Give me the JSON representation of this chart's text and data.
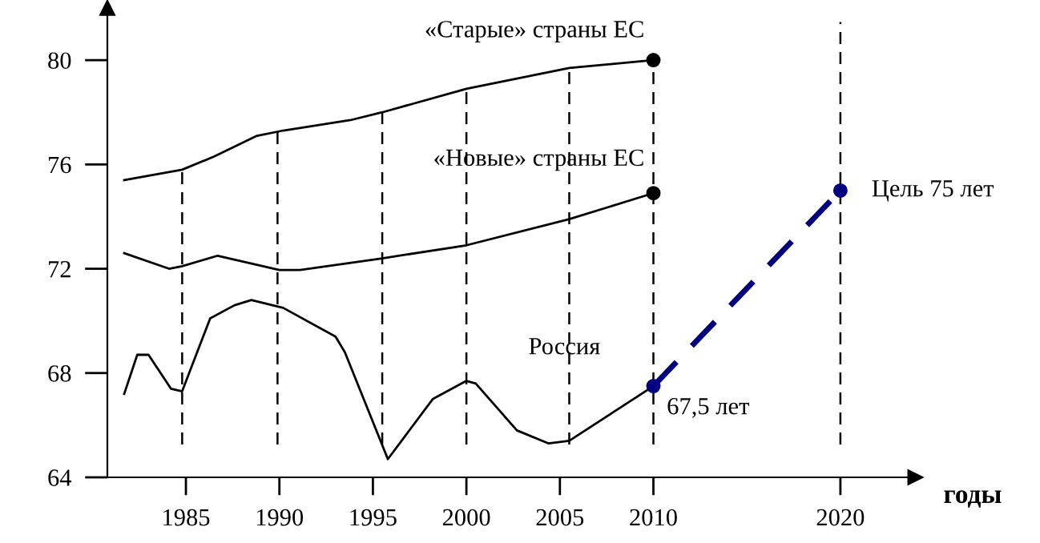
{
  "chart_data": {
    "type": "line",
    "xlabel": "годы",
    "xlim": [
      1980.8,
      2024
    ],
    "ylim": [
      64,
      82
    ],
    "xticks": [
      1985,
      1990,
      1995,
      2000,
      2005,
      2010,
      2020
    ],
    "yticks": [
      64,
      68,
      72,
      76,
      80
    ],
    "grid": false,
    "legend": false,
    "marker": "none",
    "line_style": "solid",
    "series": [
      {
        "name": "«Старые» страны ЕС",
        "color": "#000000",
        "x": [
          1981.7,
          1984.8,
          1986.5,
          1988.8,
          1990.2,
          1993.8,
          1995.5,
          2000,
          2005.5,
          2010
        ],
        "values": [
          75.4,
          75.8,
          76.3,
          77.1,
          77.3,
          77.7,
          78.0,
          78.9,
          79.7,
          80.0
        ]
      },
      {
        "name": "«Новые» страны ЕС",
        "color": "#000000",
        "x": [
          1981.7,
          1984.1,
          1984.8,
          1986.7,
          1990,
          1991.1,
          1995.5,
          2000,
          2005.5,
          2010
        ],
        "values": [
          72.6,
          72.0,
          72.1,
          72.5,
          71.95,
          71.95,
          72.4,
          72.9,
          73.9,
          74.9
        ]
      },
      {
        "name": "Россия",
        "color": "#000000",
        "x": [
          1981.7,
          1982.4,
          1983,
          1984.2,
          1984.8,
          1986.3,
          1987.6,
          1988.5,
          1990.2,
          1993,
          1993.5,
          1995.8,
          1998.2,
          2000,
          2000.5,
          2002.7,
          2004.4,
          2005.5,
          2010
        ],
        "values": [
          67.2,
          68.7,
          68.7,
          67.4,
          67.3,
          70.1,
          70.6,
          70.8,
          70.5,
          69.4,
          68.8,
          64.7,
          67.0,
          67.7,
          67.6,
          65.8,
          65.3,
          65.4,
          67.5
        ]
      },
      {
        "color": "#000080",
        "line_style": "dashed",
        "x": [
          2010,
          2020
        ],
        "values": [
          67.5,
          75
        ]
      },
      {
        "type": "scatter",
        "color": "#000000",
        "marker": "circle",
        "x": [
          2010,
          2010
        ],
        "values": [
          80.0,
          74.9
        ]
      },
      {
        "type": "scatter",
        "color": "#000080",
        "marker": "circle",
        "x": [
          2010,
          2020
        ],
        "values": [
          67.5,
          75
        ]
      }
    ],
    "ref_lines": [
      {
        "axis": "x",
        "value": 1984.8,
        "color": "#000000",
        "line_style": "dashed"
      },
      {
        "axis": "x",
        "value": 1989.9,
        "color": "#000000",
        "line_style": "dashed"
      },
      {
        "axis": "x",
        "value": 1995.5,
        "color": "#000000",
        "line_style": "dashed"
      },
      {
        "axis": "x",
        "value": 2000,
        "color": "#000000",
        "line_style": "dashed"
      },
      {
        "axis": "x",
        "value": 2005.5,
        "color": "#000000",
        "line_style": "dashed"
      },
      {
        "axis": "x",
        "value": 2010,
        "color": "#000000",
        "line_style": "dashed"
      },
      {
        "axis": "x",
        "value": 2020,
        "color": "#000000",
        "line_style": "dashed"
      }
    ],
    "annotations": [
      {
        "text": "Цель 75 лет",
        "x": 2020,
        "y": 75
      },
      {
        "text": "67,5 лет",
        "x": 2010,
        "y": 67.5
      }
    ]
  }
}
